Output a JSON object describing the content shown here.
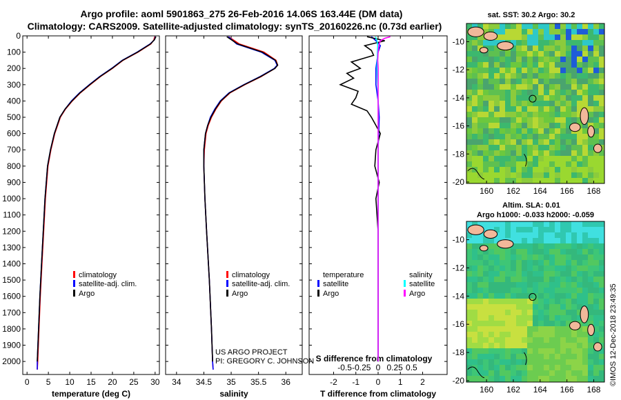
{
  "header": {
    "line1": "Argo profile: aoml 5901863_275 26-Feb-2016 14.06S 163.44E (DM data)",
    "line2": "Climatology: CARS2009. Satellite-adjusted climatology: synTS_20160226.nc (0.73d earlier)"
  },
  "credit": {
    "project": "US ARGO PROJECT",
    "pi": "PI: GREGORY C. JOHNSON",
    "imos": "©IMOS 12-Dec-2018 23:49:35"
  },
  "colors": {
    "climatology": "#ff0000",
    "satellite": "#0000ff",
    "argo": "#000000",
    "sal_satellite": "#00ffff",
    "sal_argo": "#ff00ff"
  },
  "chart_data": [
    {
      "type": "line",
      "xlabel": "temperature (deg C)",
      "ylabel": "",
      "xlim": [
        -1,
        31
      ],
      "ylim": [
        2080,
        0
      ],
      "xticks": [
        0,
        5,
        10,
        15,
        20,
        25,
        30
      ],
      "xticklabels": [
        "0",
        "5",
        "10",
        "15",
        "20",
        "25",
        "30"
      ],
      "yticks": [
        0,
        100,
        200,
        300,
        400,
        500,
        600,
        700,
        800,
        900,
        1000,
        1100,
        1200,
        1300,
        1400,
        1500,
        1600,
        1700,
        1800,
        1900,
        2000
      ],
      "legend": [
        "climatology",
        "satellite-adj. clim.",
        "Argo"
      ],
      "series": [
        {
          "name": "climatology",
          "color": "#ff0000",
          "depth": [
            5,
            25,
            50,
            100,
            150,
            200,
            250,
            300,
            350,
            400,
            450,
            500,
            600,
            700,
            800,
            1000,
            1200,
            1400,
            1600,
            1800,
            2000,
            2050
          ],
          "values": [
            29.9,
            29.7,
            29.0,
            26.0,
            22.5,
            20.0,
            17.2,
            14.8,
            12.5,
            10.6,
            9.0,
            7.8,
            6.5,
            5.6,
            4.9,
            4.3,
            3.9,
            3.5,
            3.1,
            2.8,
            2.5,
            2.4
          ]
        },
        {
          "name": "satellite-adj. clim.",
          "color": "#0000ff",
          "depth": [
            5,
            25,
            50,
            100,
            150,
            200,
            250,
            300,
            350,
            400,
            450,
            500,
            600,
            700,
            800,
            1000,
            1200,
            1400,
            1600,
            1800,
            2000,
            2050
          ],
          "values": [
            30.1,
            29.8,
            28.8,
            25.8,
            22.3,
            19.8,
            17.0,
            14.6,
            12.3,
            10.4,
            8.9,
            7.7,
            6.4,
            5.5,
            4.8,
            4.2,
            3.8,
            3.4,
            3.0,
            2.7,
            2.4,
            2.4
          ]
        },
        {
          "name": "Argo",
          "color": "#000000",
          "depth": [
            5,
            25,
            50,
            100,
            150,
            200,
            250,
            300,
            350,
            400,
            450,
            500,
            600,
            700,
            800,
            1000,
            1200,
            1400,
            1600,
            1800,
            2000
          ],
          "values": [
            30.2,
            29.8,
            28.9,
            25.9,
            22.4,
            19.9,
            17.1,
            14.7,
            12.4,
            10.5,
            8.9,
            7.7,
            6.4,
            5.5,
            4.8,
            4.2,
            3.8,
            3.4,
            3.0,
            2.7,
            2.4
          ]
        }
      ]
    },
    {
      "type": "line",
      "xlabel": "salinity",
      "xlim": [
        33.8,
        36.3
      ],
      "ylim": [
        2080,
        0
      ],
      "xticks": [
        34,
        34.5,
        35,
        35.5,
        36
      ],
      "xticklabels": [
        "34",
        "34.5",
        "35",
        "35.5",
        "36"
      ],
      "legend": [
        "climatology",
        "satellite-adj. clim.",
        "Argo"
      ],
      "series": [
        {
          "name": "climatology",
          "color": "#ff0000",
          "depth": [
            5,
            50,
            100,
            150,
            180,
            200,
            250,
            300,
            350,
            400,
            450,
            500,
            550,
            600,
            700,
            800,
            1000,
            1200,
            1500,
            1800,
            2000,
            2050
          ],
          "values": [
            34.95,
            35.15,
            35.6,
            35.82,
            35.85,
            35.8,
            35.55,
            35.25,
            34.98,
            34.82,
            34.72,
            34.64,
            34.58,
            34.54,
            34.51,
            34.5,
            34.52,
            34.55,
            34.6,
            34.64,
            34.66,
            34.67
          ]
        },
        {
          "name": "satellite-adj. clim.",
          "color": "#0000ff",
          "depth": [
            5,
            50,
            100,
            150,
            180,
            200,
            250,
            300,
            350,
            400,
            450,
            500,
            550,
            600,
            700,
            800,
            1000,
            1200,
            1500,
            1800,
            2000,
            2050
          ],
          "values": [
            34.95,
            35.1,
            35.55,
            35.8,
            35.84,
            35.79,
            35.53,
            35.23,
            34.96,
            34.8,
            34.7,
            34.62,
            34.57,
            34.53,
            34.5,
            34.5,
            34.52,
            34.55,
            34.6,
            34.64,
            34.66,
            34.67
          ]
        },
        {
          "name": "Argo",
          "color": "#000000",
          "depth": [
            5,
            50,
            100,
            150,
            180,
            200,
            250,
            300,
            350,
            400,
            450,
            500,
            550,
            600,
            700,
            800,
            1000,
            1200,
            1500,
            1800,
            2000
          ],
          "values": [
            34.92,
            35.12,
            35.57,
            35.81,
            35.85,
            35.8,
            35.54,
            35.24,
            34.97,
            34.81,
            34.71,
            34.63,
            34.57,
            34.53,
            34.5,
            34.5,
            34.52,
            34.55,
            34.6,
            34.64,
            34.66
          ]
        }
      ]
    },
    {
      "type": "line",
      "xlabel": "T difference from climatology",
      "xlabel_top": "S difference from climatology",
      "xlim": [
        -3.1,
        3.1
      ],
      "ylim": [
        2080,
        0
      ],
      "xticks": [
        -2,
        -1,
        0,
        1,
        2
      ],
      "xticklabels": [
        "-2",
        "-1",
        "0",
        "1",
        "2"
      ],
      "xticks_top": [
        -1.5,
        -0.75,
        0,
        0.75,
        1.5
      ],
      "xticklabels_top": [
        "-0.5",
        "-0.25",
        "0",
        "0.25",
        "0.5"
      ],
      "legend_left_title": "temperature",
      "legend_right_title": "salinity",
      "legend_left": [
        "satellite",
        "Argo"
      ],
      "legend_right": [
        "satellite",
        "Argo"
      ],
      "series": [
        {
          "name": "T satellite",
          "color": "#0000ff",
          "depth": [
            5,
            30,
            60,
            100,
            200,
            300,
            400,
            500,
            700,
            1000,
            1500,
            2000
          ],
          "values": [
            -0.3,
            -0.1,
            0.1,
            0.0,
            -0.1,
            -0.1,
            0.0,
            0.05,
            0.0,
            0.0,
            0.0,
            0.0
          ]
        },
        {
          "name": "T Argo",
          "color": "#000000",
          "depth": [
            5,
            30,
            60,
            90,
            120,
            160,
            200,
            230,
            260,
            300,
            340,
            380,
            420,
            460,
            500,
            550,
            600,
            700,
            800,
            900,
            1000,
            1200,
            1500,
            1800,
            2000
          ],
          "values": [
            -0.5,
            0.3,
            -0.6,
            -0.3,
            -0.2,
            -1.2,
            -0.8,
            -1.4,
            -1.1,
            -1.7,
            -0.9,
            -1.0,
            -1.2,
            -0.5,
            -0.3,
            -0.1,
            0.1,
            -0.1,
            -0.15,
            0.05,
            -0.1,
            0.0,
            0.0,
            0.0,
            0.0
          ]
        },
        {
          "name": "S satellite",
          "color": "#00ffff",
          "depth": [
            5,
            30,
            60,
            100,
            150,
            200,
            300,
            400,
            500,
            700,
            1000,
            1500,
            2000
          ],
          "values": [
            -0.12,
            -0.05,
            -0.02,
            -0.03,
            -0.04,
            -0.05,
            -0.02,
            0.0,
            0.01,
            0.0,
            0.0,
            0.0,
            0.0
          ]
        },
        {
          "name": "S Argo",
          "color": "#ff00ff",
          "depth": [
            5,
            15,
            30,
            60,
            100,
            150,
            200,
            300,
            400,
            500,
            700,
            1000,
            1500,
            2000
          ],
          "values": [
            0.55,
            0.3,
            0.1,
            0.03,
            0.0,
            -0.02,
            0.0,
            0.0,
            0.0,
            0.0,
            0.0,
            0.0,
            0.0,
            0.0
          ]
        }
      ]
    },
    {
      "type": "heatmap",
      "title": "sat. SST: 30.2 Argo: 30.2",
      "xticks": [
        160,
        162,
        164,
        166,
        168
      ],
      "xticklabels": [
        "160",
        "162",
        "164",
        "166",
        "168"
      ],
      "yticks": [
        -10,
        -12,
        -14,
        -16,
        -18,
        -20
      ],
      "yticklabels": [
        "-10",
        "-12",
        "-14",
        "-16",
        "-18",
        "-20"
      ],
      "xlim": [
        158.5,
        168.8
      ],
      "ylim": [
        -20.1,
        -8.7
      ],
      "marker": [
        163.44,
        -14.06
      ]
    },
    {
      "type": "heatmap",
      "title": "Altim. SLA: 0.01",
      "subtitle": "Argo h1000: -0.033 h2000: -0.059",
      "xticks": [
        160,
        162,
        164,
        166,
        168
      ],
      "xticklabels": [
        "160",
        "162",
        "164",
        "166",
        "168"
      ],
      "yticks": [
        -10,
        -12,
        -14,
        -16,
        -18,
        -20
      ],
      "yticklabels": [
        "-10",
        "-12",
        "-14",
        "-16",
        "-18",
        "-20"
      ],
      "xlim": [
        158.5,
        168.8
      ],
      "ylim": [
        -20.1,
        -8.7
      ],
      "marker": [
        163.44,
        -14.06
      ]
    }
  ]
}
